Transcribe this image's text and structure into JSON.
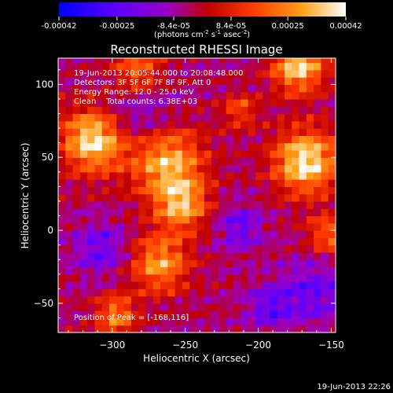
{
  "colorbar": {
    "ticks": [
      "-0.00042",
      "-0.00025",
      "-8.4e-05",
      "8.4e-05",
      "0.00025",
      "0.00042"
    ],
    "tick_values": [
      -0.00042,
      -0.00025,
      -8.4e-05,
      8.4e-05,
      0.00025,
      0.00042
    ],
    "range": [
      -0.00042,
      0.00042
    ],
    "units_prefix": "(photons cm",
    "units_exp1": "-2",
    "units_mid": " s",
    "units_exp2": "-1",
    "units_mid2": " asec",
    "units_exp3": "-2",
    "units_suffix": ")",
    "colors": [
      "#0000ff",
      "#5e00ff",
      "#9b00c2",
      "#c10000",
      "#ff3d00",
      "#ffa21a",
      "#ffffff"
    ]
  },
  "chart_data": {
    "type": "heatmap",
    "title": "Reconstructed RHESSI Image",
    "xlabel": "Heliocentric X (arcsec)",
    "ylabel": "Heliocentric Y (arcsec)",
    "xlim": [
      -337,
      -147
    ],
    "ylim": [
      -70,
      118
    ],
    "x_ticks": [
      -300,
      -250,
      -200,
      -150
    ],
    "y_ticks": [
      -50,
      0,
      50,
      100
    ],
    "x_tick_labels": [
      "−300",
      "−250",
      "−200",
      "−150"
    ],
    "y_tick_labels": [
      "−50",
      "0",
      "50",
      "100"
    ],
    "peak_position": [
      -168,
      116
    ],
    "annotations": {
      "time_range": "19-Jun-2013 20:05:44.000 to 20:08:48.000",
      "detectors": "Detectors: 3F 5F 6F 7F 8F 9F, Att 0",
      "energy": "Energy Range: 12.0 - 25.0 keV",
      "clean": "Clean    Total counts: 6.38E+03",
      "peak": "Position of Peak = [-168,116]"
    }
  },
  "footer": {
    "timestamp": "19-Jun-2013 22:26"
  }
}
